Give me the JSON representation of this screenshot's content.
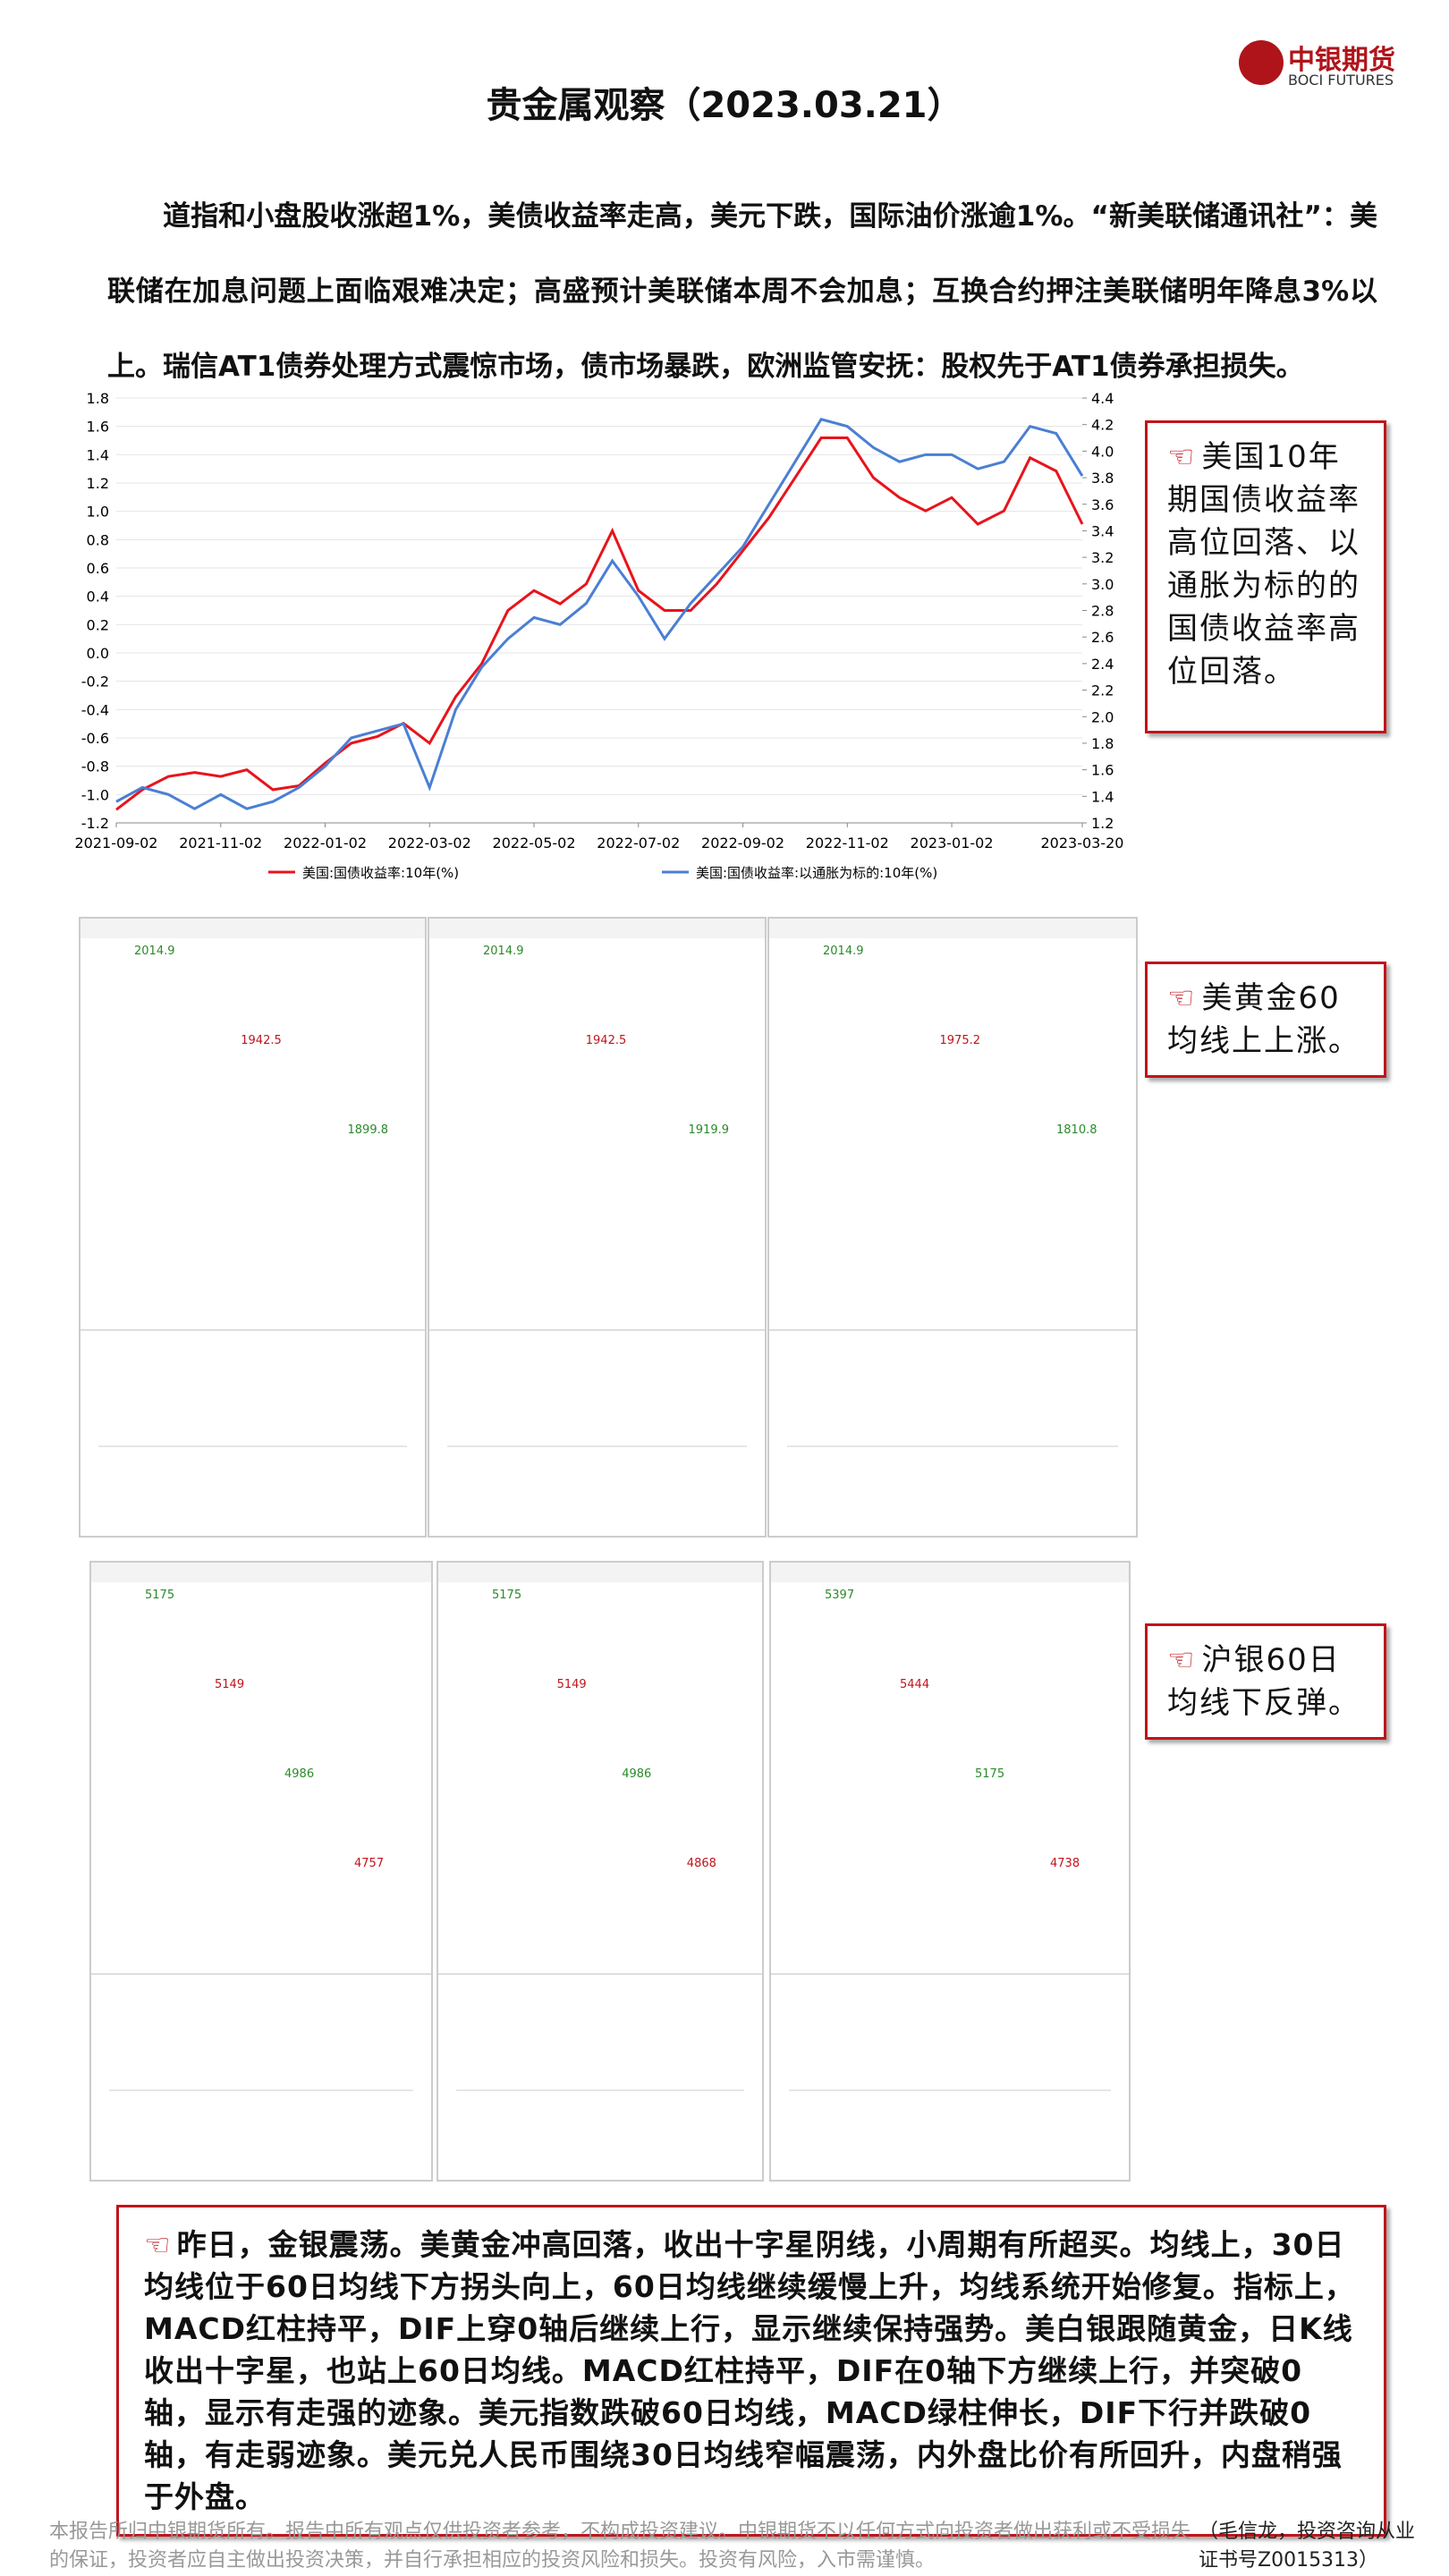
{
  "header": {
    "title": "贵金属观察（2023.03.21）",
    "logo_cn": "中银期货",
    "logo_en": "BOCI FUTURES"
  },
  "intro": "道指和小盘股收涨超1%，美债收益率走高，美元下跌，国际油价涨逾1%。“新美联储通讯社”：美联储在加息问题上面临艰难决定；高盛预计美联储本周不会加息；互换合约押注美联储明年降息3%以上。瑞信AT1债券处理方式震惊市场，债市场暴跌，欧洲监管安抚：股权先于AT1债券承担损失。",
  "chart_data": {
    "type": "line",
    "xlim": [
      0,
      37
    ],
    "xticks": [
      {
        "value": 0,
        "label": "2021-09-02"
      },
      {
        "value": 4,
        "label": "2021-11-02"
      },
      {
        "value": 8,
        "label": "2022-01-02"
      },
      {
        "value": 12,
        "label": "2022-03-02"
      },
      {
        "value": 16,
        "label": "2022-05-02"
      },
      {
        "value": 20,
        "label": "2022-07-02"
      },
      {
        "value": 24,
        "label": "2022-09-02"
      },
      {
        "value": 28,
        "label": "2022-11-02"
      },
      {
        "value": 32,
        "label": "2023-01-02"
      },
      {
        "value": 37,
        "label": "2023-03-20"
      }
    ],
    "ylim": [
      -1.2,
      1.8
    ],
    "yticks": [
      -1.2,
      {
        "value": -1,
        "label": "-1.0"
      },
      -0.8,
      -0.6,
      -0.4,
      -0.2,
      {
        "value": 0,
        "label": "0.0"
      },
      0.2,
      0.4,
      0.6,
      0.8,
      {
        "value": 1,
        "label": "1.0"
      },
      1.2,
      1.4,
      1.6,
      1.8
    ],
    "y2lim": [
      1.2,
      4.4
    ],
    "y2ticks": [
      1.2,
      1.4,
      1.6,
      1.8,
      {
        "value": 2,
        "label": "2.0"
      },
      2.2,
      2.4,
      2.6,
      2.8,
      {
        "value": 3,
        "label": "3.0"
      },
      3.2,
      3.4,
      3.6,
      3.8,
      {
        "value": 4,
        "label": "4.0"
      },
      4.2,
      4.4
    ],
    "grid": true,
    "series": [
      {
        "name": "美国:国债收益率:10年(%)",
        "color": "#e8141c",
        "axis": "y2",
        "values": [
          1.3,
          1.45,
          1.55,
          1.58,
          1.55,
          1.6,
          1.45,
          1.48,
          1.65,
          1.8,
          1.85,
          1.95,
          1.8,
          2.15,
          2.4,
          2.8,
          2.95,
          2.85,
          3.0,
          3.4,
          2.95,
          2.8,
          2.8,
          3.0,
          3.25,
          3.5,
          3.8,
          4.1,
          4.1,
          3.8,
          3.65,
          3.55,
          3.65,
          3.45,
          3.55,
          3.95,
          3.85,
          3.45
        ]
      },
      {
        "name": "美国:国债收益率:以通胀为标的:10年(%)",
        "color": "#4a7fd4",
        "values": [
          -1.05,
          -0.95,
          -1.0,
          -1.1,
          -1.0,
          -1.1,
          -1.05,
          -0.95,
          -0.8,
          -0.6,
          -0.55,
          -0.5,
          -0.95,
          -0.4,
          -0.1,
          0.1,
          0.25,
          0.2,
          0.35,
          0.65,
          0.4,
          0.1,
          0.35,
          0.55,
          0.75,
          1.05,
          1.35,
          1.65,
          1.6,
          1.45,
          1.35,
          1.4,
          1.4,
          1.3,
          1.35,
          1.6,
          1.55,
          1.25
        ]
      }
    ]
  },
  "notes": [
    "美国10年期国债收益率高位回落、以通胀为标的的国债收益率高位回落。",
    "美黄金60均线上上涨。",
    "沪银60日均线下反弹。"
  ],
  "gold_panels": [
    [
      "2014.9",
      "1942.5",
      "1899.8"
    ],
    [
      "2014.9",
      "1942.5",
      "1919.9"
    ],
    [
      "2014.9",
      "1975.2",
      "1810.8"
    ]
  ],
  "silver_panels": [
    [
      "5175",
      "5149",
      "4986",
      "4757"
    ],
    [
      "5175",
      "5149",
      "4986",
      "4868"
    ],
    [
      "5397",
      "5444",
      "5175",
      "4738"
    ]
  ],
  "summary": "昨日，金银震荡。美黄金冲高回落，收出十字星阴线，小周期有所超买。均线上，30日均线位于60日均线下方拐头向上，60日均线继续缓慢上升，均线系统开始修复。指标上，MACD红柱持平，DIF上穿0轴后继续上行，显示继续保持强势。美白银跟随黄金，日K线收出十字星，也站上60日均线。MACD红柱持平，DIF在0轴下方继续上行，并突破0轴，显示有走强的迹象。美元指数跌破60日均线，MACD绿柱伸长，DIF下行并跌破0轴，有走弱迹象。美元兑人民币围绕30日均线窄幅震荡，内外盘比价有所回升，内盘稍强于外盘。",
  "footer": {
    "disclaimer": "本报告所归中银期货所有。报告中所有观点仅供投资者参考，不构成投资建议。中银期货不以任何方式向投资者做出获利或不受损失的保证，投资者应自主做出投资决策，并自行承担相应的投资风险和损失。投资有风险，入市需谨慎。",
    "author": "（毛信龙，投资咨询从业证书号Z0015313）"
  }
}
